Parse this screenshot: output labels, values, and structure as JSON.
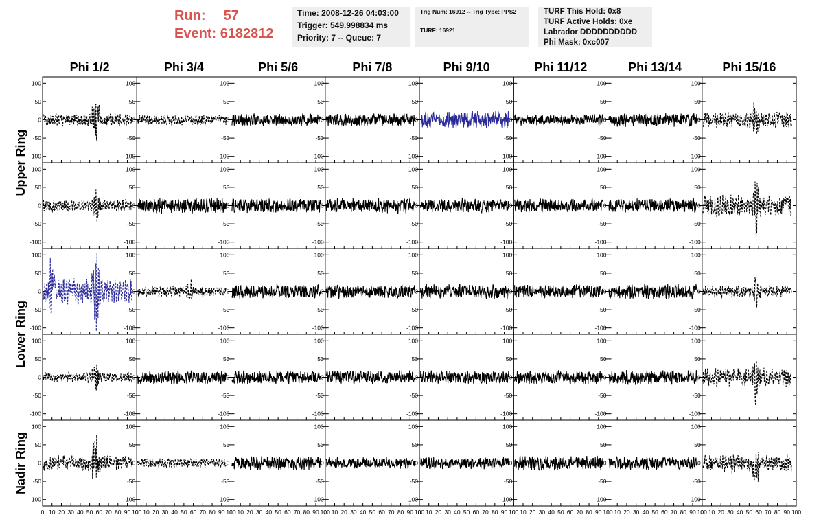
{
  "run": {
    "run_label": "Run:",
    "run_value": "57",
    "event_label": "Event:",
    "event_value": "6182812"
  },
  "info_box_1": [
    "Time: 2008-12-26 04:03:00",
    "Trigger: 549.998834 ms",
    "Priority: 7 -- Queue: 7"
  ],
  "info_box_2": [
    "Trig Num: 16912 -- Trig Type: PPS2",
    "TURF: 16921"
  ],
  "info_box_3": [
    "TURF This Hold: 0x8",
    "TURF Active Holds: 0xe",
    "Labrador DDDDDDDDDD",
    "Phi Mask: 0xc007"
  ],
  "colors": {
    "header_text": "#d9534f",
    "info_bg": "#eeeeee",
    "trace_black": "#000000",
    "trace_blue": "#2b2b9a"
  },
  "chart_data": {
    "type": "line",
    "columns": [
      "Phi 1/2",
      "Phi 3/4",
      "Phi 5/6",
      "Phi 7/8",
      "Phi 9/10",
      "Phi 11/12",
      "Phi 13/14",
      "Phi 15/16"
    ],
    "rows": [
      "Upper Ring",
      "Upper Ring",
      "Lower Ring",
      "Lower Ring",
      "Nadir Ring"
    ],
    "row_labels": [
      "Upper Ring",
      "Lower Ring",
      "Nadir Ring"
    ],
    "xlim": [
      0,
      100
    ],
    "ylim": [
      -110,
      110
    ],
    "y_ticks": [
      -100,
      -50,
      0,
      50,
      100
    ],
    "x_ticks": [
      0,
      10,
      20,
      30,
      40,
      50,
      60,
      70,
      80,
      90,
      100
    ],
    "panels": [
      [
        {
          "amp": 15,
          "spike": 65,
          "dashed": true,
          "color": "black",
          "end": 95
        },
        {
          "amp": 12,
          "spike": 0,
          "dashed": true,
          "color": "black",
          "end": 95
        },
        {
          "amp": 14,
          "spike": 0,
          "dashed": false,
          "color": "black",
          "end": 95
        },
        {
          "amp": 15,
          "spike": 0,
          "dashed": false,
          "color": "black",
          "end": 95
        },
        {
          "amp": 20,
          "spike": 0,
          "dashed": false,
          "color": "blue",
          "end": 95
        },
        {
          "amp": 13,
          "spike": 0,
          "dashed": false,
          "color": "black",
          "end": 95
        },
        {
          "amp": 16,
          "spike": 0,
          "dashed": false,
          "color": "black",
          "end": 95
        },
        {
          "amp": 18,
          "spike": 40,
          "dashed": true,
          "color": "black",
          "end": 95
        }
      ],
      [
        {
          "amp": 14,
          "spike": 40,
          "dashed": true,
          "color": "black",
          "end": 95
        },
        {
          "amp": 18,
          "spike": 0,
          "dashed": false,
          "color": "black",
          "end": 95
        },
        {
          "amp": 17,
          "spike": 0,
          "dashed": false,
          "color": "black",
          "end": 95
        },
        {
          "amp": 18,
          "spike": 0,
          "dashed": false,
          "color": "black",
          "end": 95
        },
        {
          "amp": 16,
          "spike": 0,
          "dashed": false,
          "color": "black",
          "end": 95
        },
        {
          "amp": 16,
          "spike": 0,
          "dashed": false,
          "color": "black",
          "end": 95
        },
        {
          "amp": 16,
          "spike": 0,
          "dashed": false,
          "color": "black",
          "end": 95
        },
        {
          "amp": 25,
          "spike": 70,
          "dashed": true,
          "color": "black",
          "end": 95
        }
      ],
      [
        {
          "amp": 30,
          "spike": 100,
          "dashed": true,
          "color": "blue",
          "end": 95
        },
        {
          "amp": 12,
          "spike": 25,
          "dashed": true,
          "color": "black",
          "end": 95
        },
        {
          "amp": 16,
          "spike": 0,
          "dashed": false,
          "color": "black",
          "end": 95
        },
        {
          "amp": 16,
          "spike": 0,
          "dashed": false,
          "color": "black",
          "end": 95
        },
        {
          "amp": 17,
          "spike": 0,
          "dashed": false,
          "color": "black",
          "end": 95
        },
        {
          "amp": 15,
          "spike": 0,
          "dashed": false,
          "color": "black",
          "end": 95
        },
        {
          "amp": 17,
          "spike": 0,
          "dashed": false,
          "color": "black",
          "end": 95
        },
        {
          "amp": 14,
          "spike": 35,
          "dashed": true,
          "color": "black",
          "end": 95
        }
      ],
      [
        {
          "amp": 12,
          "spike": 40,
          "dashed": true,
          "color": "black",
          "end": 95
        },
        {
          "amp": 16,
          "spike": 0,
          "dashed": false,
          "color": "black",
          "end": 95
        },
        {
          "amp": 16,
          "spike": 0,
          "dashed": false,
          "color": "black",
          "end": 95
        },
        {
          "amp": 15,
          "spike": 0,
          "dashed": false,
          "color": "black",
          "end": 95
        },
        {
          "amp": 15,
          "spike": 0,
          "dashed": false,
          "color": "black",
          "end": 95
        },
        {
          "amp": 16,
          "spike": 0,
          "dashed": false,
          "color": "black",
          "end": 95
        },
        {
          "amp": 17,
          "spike": 0,
          "dashed": false,
          "color": "black",
          "end": 95
        },
        {
          "amp": 22,
          "spike": 65,
          "dashed": true,
          "color": "black",
          "end": 95
        }
      ],
      [
        {
          "amp": 18,
          "spike": 70,
          "dashed": true,
          "color": "black",
          "end": 95
        },
        {
          "amp": 11,
          "spike": 0,
          "dashed": true,
          "color": "black",
          "end": 95
        },
        {
          "amp": 16,
          "spike": 0,
          "dashed": false,
          "color": "black",
          "end": 95
        },
        {
          "amp": 13,
          "spike": 0,
          "dashed": false,
          "color": "black",
          "end": 95
        },
        {
          "amp": 14,
          "spike": 0,
          "dashed": false,
          "color": "black",
          "end": 95
        },
        {
          "amp": 17,
          "spike": 0,
          "dashed": false,
          "color": "black",
          "end": 95
        },
        {
          "amp": 15,
          "spike": 0,
          "dashed": false,
          "color": "black",
          "end": 95
        },
        {
          "amp": 20,
          "spike": 55,
          "dashed": true,
          "color": "black",
          "end": 95
        }
      ]
    ]
  }
}
